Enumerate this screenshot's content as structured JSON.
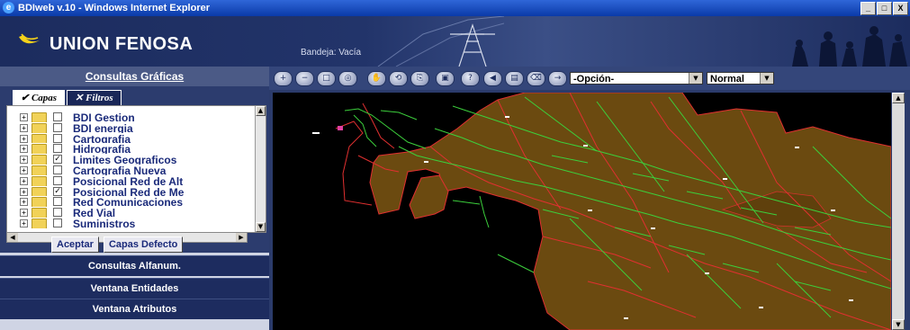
{
  "window": {
    "title": "BDIweb v.10 - Windows Internet Explorer",
    "controls": [
      "_",
      "□",
      "X"
    ]
  },
  "header": {
    "brand": "UNION FENOSA",
    "bandeja": "Bandeja: Vacía"
  },
  "left": {
    "heading": "Consultas Gráficas",
    "tabs": [
      {
        "label": "Capas",
        "icon": "check-icon",
        "active": true
      },
      {
        "label": "Filtros",
        "icon": "x-icon",
        "active": false
      }
    ],
    "layers": [
      {
        "label": "BDI Gestion",
        "checked": false
      },
      {
        "label": "BDI energia",
        "checked": false
      },
      {
        "label": "Cartografia",
        "checked": false
      },
      {
        "label": "Hidrografia",
        "checked": false
      },
      {
        "label": "Limites Geograficos",
        "checked": true
      },
      {
        "label": "Cartografia Nueva",
        "checked": false
      },
      {
        "label": "Posicional Red de Alt",
        "checked": false
      },
      {
        "label": "Posicional Red de Me",
        "checked": true
      },
      {
        "label": "Red Comunicaciones",
        "checked": false
      },
      {
        "label": "Red Vial",
        "checked": false
      },
      {
        "label": "Suministros",
        "checked": false
      }
    ],
    "accept_label": "Aceptar",
    "defaults_label": "Capas Defecto",
    "menu": [
      "Consultas Alfanum.",
      "Ventana Entidades",
      "Ventana Atributos"
    ]
  },
  "toolbar": {
    "buttons": [
      "zoom-in-icon",
      "zoom-out-icon",
      "zoom-window-icon",
      "full-extent-icon",
      "pan-icon",
      "previous-view-icon",
      "copy-icon",
      "print-icon",
      "help-icon",
      "back-icon",
      "save-icon",
      "erase-icon",
      "go-icon"
    ],
    "option_value": "-Opción-",
    "mode_value": "Normal"
  },
  "colors": {
    "header_bg": "#1c2c5e",
    "map_bg": "#000000",
    "area_fill": "#6b4a10",
    "line_red": "#e03030",
    "line_green": "#3ccf3c"
  }
}
